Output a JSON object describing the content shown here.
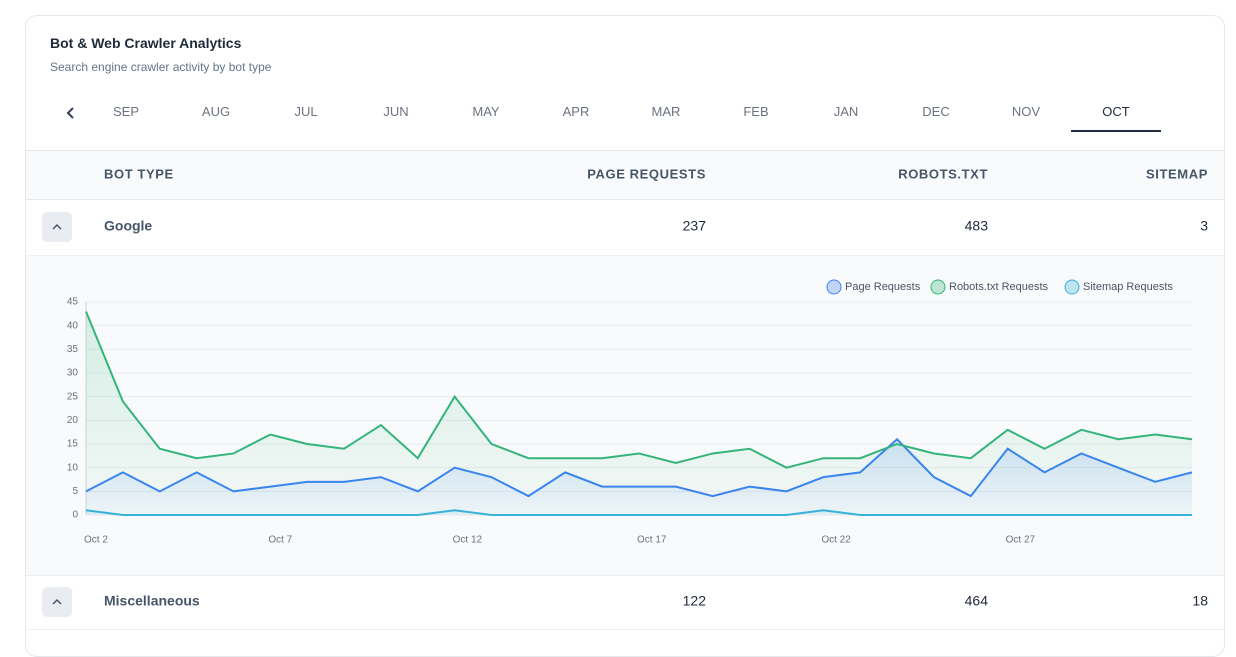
{
  "header": {
    "title": "Bot & Web Crawler Analytics",
    "subtitle": "Search engine crawler activity by bot type"
  },
  "tabs": {
    "items": [
      "SEP",
      "AUG",
      "JUL",
      "JUN",
      "MAY",
      "APR",
      "MAR",
      "FEB",
      "JAN",
      "DEC",
      "NOV",
      "OCT"
    ],
    "active_index": 11
  },
  "table": {
    "columns": [
      "BOT TYPE",
      "PAGE REQUESTS",
      "ROBOTS.TXT",
      "SITEMAP"
    ],
    "rows": [
      [
        "Google",
        237,
        483,
        3
      ],
      [
        "Miscellaneous",
        122,
        464,
        18
      ]
    ]
  },
  "chart_data": {
    "type": "line",
    "categories": [
      "Oct 2",
      null,
      null,
      null,
      null,
      "Oct 7",
      null,
      null,
      null,
      null,
      "Oct 12",
      null,
      null,
      null,
      null,
      "Oct 17",
      null,
      null,
      null,
      null,
      "Oct 22",
      null,
      null,
      null,
      null,
      "Oct 27",
      null,
      null,
      null,
      null,
      null
    ],
    "series": [
      {
        "name": "Page Requests",
        "color": "#3b82f6",
        "values": [
          5,
          9,
          5,
          9,
          5,
          6,
          7,
          7,
          8,
          5,
          10,
          8,
          4,
          9,
          6,
          6,
          6,
          4,
          6,
          5,
          8,
          9,
          16,
          8,
          4,
          14,
          9,
          13,
          10,
          7,
          9
        ]
      },
      {
        "name": "Robots.txt Requests",
        "color": "#34b47a",
        "values": [
          43,
          24,
          14,
          12,
          13,
          17,
          15,
          14,
          19,
          12,
          25,
          15,
          12,
          12,
          12,
          13,
          11,
          13,
          14,
          10,
          12,
          12,
          15,
          13,
          12,
          18,
          14,
          18,
          16,
          17,
          16
        ]
      },
      {
        "name": "Sitemap Requests",
        "color": "#38b2d6",
        "values": [
          1,
          0,
          0,
          0,
          0,
          0,
          0,
          0,
          0,
          0,
          1,
          0,
          0,
          0,
          0,
          0,
          0,
          0,
          0,
          0,
          1,
          0,
          0,
          0,
          0,
          0,
          0,
          0,
          0,
          0,
          0
        ]
      }
    ],
    "ylim": [
      0,
      45
    ],
    "yticks": [
      0,
      5,
      10,
      15,
      20,
      25,
      30,
      35,
      40,
      45
    ],
    "grid": true,
    "fill": true,
    "legend": "top-right"
  }
}
